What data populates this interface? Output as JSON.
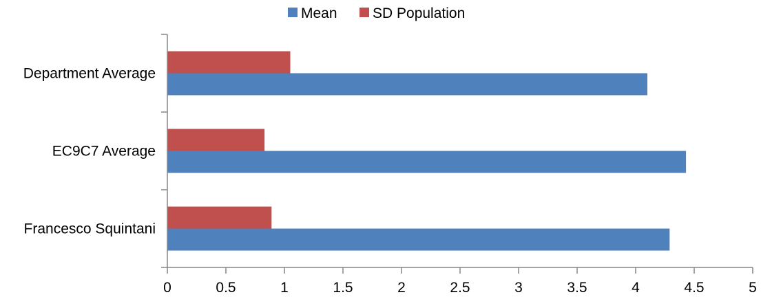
{
  "chart_data": {
    "type": "bar",
    "orientation": "horizontal",
    "categories": [
      "Department Average",
      "EC9C7 Average",
      "Francesco Squintani"
    ],
    "series": [
      {
        "name": "Mean",
        "color": "#4F81BD",
        "values": [
          4.1,
          4.43,
          4.29
        ]
      },
      {
        "name": "SD Population",
        "color": "#C0504D",
        "values": [
          1.05,
          0.83,
          0.89
        ]
      }
    ],
    "xlim": [
      0,
      5
    ],
    "xticks": [
      "0",
      "0.5",
      "1",
      "1.5",
      "2",
      "2.5",
      "3",
      "3.5",
      "4",
      "4.5",
      "5"
    ],
    "legend_position": "top-center",
    "grid": false,
    "axis_color": "#868686"
  }
}
